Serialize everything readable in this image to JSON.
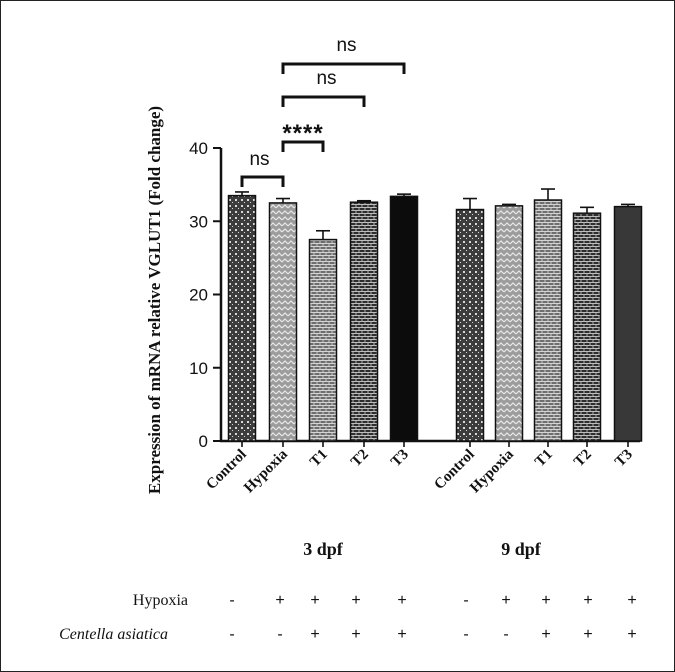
{
  "chart_data": {
    "type": "bar",
    "ylabel": "Expression of mRNA relative VGLUT1 (Fold change)",
    "ylim": [
      0,
      40
    ],
    "yticks": [
      0,
      10,
      20,
      30,
      40
    ],
    "categories": [
      "Control",
      "Hypoxia",
      "T1",
      "T2",
      "T3"
    ],
    "groups": [
      {
        "name": "3 dpf",
        "values": [
          33.5,
          32.5,
          27.5,
          32.6,
          33.4
        ],
        "errors": [
          0.5,
          0.6,
          1.2,
          0.2,
          0.3
        ]
      },
      {
        "name": "9 dpf",
        "values": [
          31.6,
          32.1,
          32.9,
          31.1,
          32.0
        ],
        "errors": [
          1.5,
          0.2,
          1.5,
          0.8,
          0.3
        ]
      }
    ],
    "bar_fills": [
      "#5a5a5a",
      "#9a9a9a",
      "#7a7a7a",
      "#4a4a4a",
      "#111111"
    ],
    "bar_fills_group2": [
      "#5a5a5a",
      "#9a9a9a",
      "#7a7a7a",
      "#4a4a4a",
      "#3a3a3a"
    ],
    "significance": [
      {
        "from": 0,
        "to": 1,
        "label": "ns"
      },
      {
        "from": 1,
        "to": 2,
        "label": "****"
      },
      {
        "from": 1,
        "to": 3,
        "label": "ns"
      },
      {
        "from": 1,
        "to": 4,
        "label": "ns"
      }
    ]
  },
  "treatment_table": {
    "rows": [
      {
        "label": "Hypoxia",
        "marks": [
          "-",
          "+",
          "+",
          "+",
          "+",
          "-",
          "+",
          "+",
          "+",
          "+"
        ]
      },
      {
        "label": "Centella asiatica",
        "marks": [
          "-",
          "-",
          "+",
          "+",
          "+",
          "-",
          "-",
          "+",
          "+",
          "+"
        ]
      }
    ]
  }
}
